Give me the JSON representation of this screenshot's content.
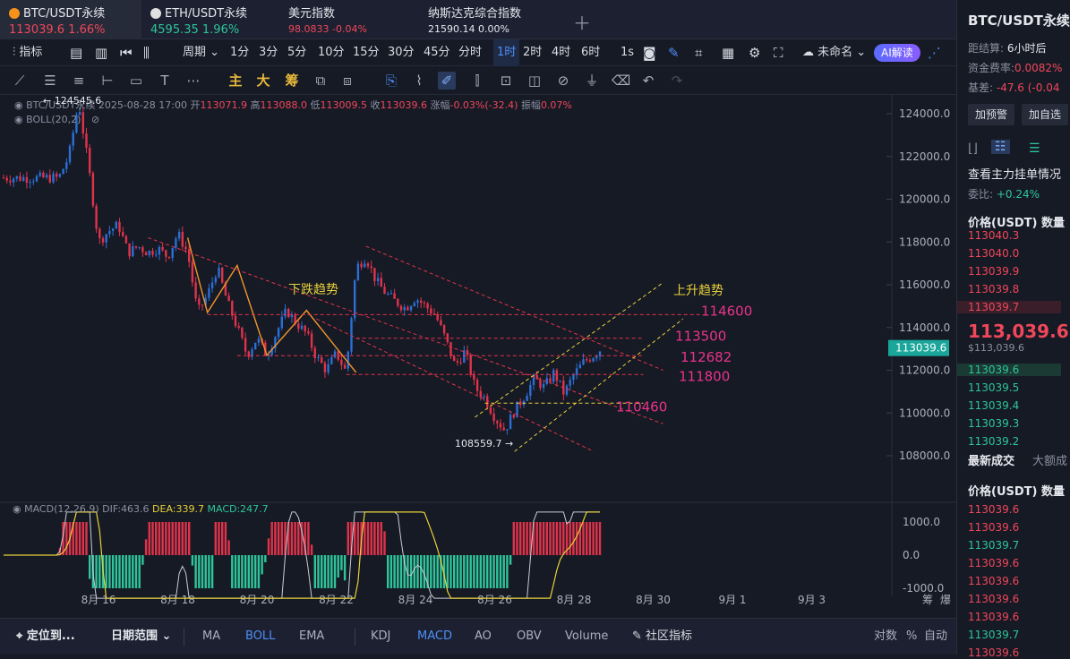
{
  "tabs": [
    {
      "symbol": "BTC/USDT永续",
      "price": "113039.6",
      "change": "1.66%",
      "dir": "up",
      "active": true
    },
    {
      "symbol": "ETH/USDT永续",
      "price": "4595.35",
      "change": "1.96%",
      "dir": "down",
      "active": false
    },
    {
      "symbol": "美元指数",
      "price": "98.0833",
      "change": "-0.04%",
      "dir": "up",
      "active": false
    },
    {
      "symbol": "纳斯达克综合指数",
      "price": "21590.14",
      "change": "0.00%",
      "dir": "flat",
      "active": false
    }
  ],
  "toolbar": {
    "indicators": "指标",
    "period": "周期",
    "intervals": [
      "1分",
      "3分",
      "5分",
      "10分",
      "15分",
      "30分",
      "45分",
      "分时",
      "1时",
      "2时",
      "4时",
      "6时"
    ],
    "selected_interval": "1时",
    "interval_1s": "1s",
    "layout_name": "未命名",
    "ai_button": "AI解读"
  },
  "drawing_tools": {
    "main": "主",
    "big": "大",
    "chip": "筹"
  },
  "legend": {
    "symbol": "BTC/USDT永续",
    "datetime": "2025-08-28 17:00",
    "open_label": "开",
    "open": "113071.9",
    "high_label": "高",
    "high": "113088.0",
    "low_label": "低",
    "low": "113009.5",
    "close_label": "收",
    "close": "113039.6",
    "change_label": "涨幅",
    "change": "-0.03%(-32.4)",
    "amp_label": "振幅",
    "amp": "0.07%",
    "boll": "BOLL(20,2)",
    "high_marker": "124545.6"
  },
  "macd_legend": {
    "name": "MACD(12,26,9)",
    "dif": "DIF:463.6",
    "dea": "DEA:339.7",
    "macd": "MACD:247.7"
  },
  "annotations": {
    "down_trend": "下跌趋势",
    "up_trend": "上升趋势",
    "low_marker": "108559.7",
    "levels": [
      "114600",
      "113500",
      "112682",
      "111800",
      "110460"
    ]
  },
  "price_axis": [
    "124000.0",
    "122000.0",
    "120000.0",
    "118000.0",
    "116000.0",
    "114000.0",
    "112000.0",
    "110000.0",
    "108000.0"
  ],
  "current_price_tag": "113039.6",
  "macd_axis": [
    "1000.0",
    "0.0",
    "-1000.0"
  ],
  "time_axis": [
    "8月 16",
    "8月 18",
    "8月 20",
    "8月 22",
    "8月 24",
    "8月 26",
    "8月 28",
    "8月 30",
    "9月 1",
    "9月 3"
  ],
  "axis_corner": [
    "筹",
    "爆"
  ],
  "bottom_bar": {
    "goto": "定位到...",
    "range": "日期范围",
    "items": [
      "MA",
      "BOLL",
      "EMA",
      "KDJ",
      "MACD",
      "AO",
      "OBV",
      "Volume"
    ],
    "active": [
      "BOLL",
      "MACD"
    ],
    "community": "社区指标",
    "right": [
      "对数",
      "%",
      "自动"
    ]
  },
  "side_panel": {
    "title": "BTC/USDT永续",
    "settle_label": "距结算:",
    "settle_value": "6小时后",
    "funding_label": "资金费率:",
    "funding_value": "0.0082%",
    "basis_label": "基差:",
    "basis_value": "-47.6 (-0.04",
    "alert_btn": "加预警",
    "watch_btn": "加自选",
    "orderbook_link": "查看主力挂单情况",
    "commission_label": "委比:",
    "commission_value": "+0.24%",
    "header": "价格(USDT) 数量",
    "asks": [
      "113040.3",
      "113040.0",
      "113039.9",
      "113039.8",
      "113039.7"
    ],
    "last_price": "113,039.6",
    "last_price_usd": "$113,039.6",
    "bids": [
      "113039.6",
      "113039.5",
      "113039.4",
      "113039.3",
      "113039.2"
    ],
    "trades_tab": "最新成交",
    "big_tab": "大额成",
    "trades_header": "价格(USDT) 数量",
    "trades": [
      {
        "p": "113039.6",
        "c": "r"
      },
      {
        "p": "113039.6",
        "c": "r"
      },
      {
        "p": "113039.7",
        "c": "g"
      },
      {
        "p": "113039.6",
        "c": "r"
      },
      {
        "p": "113039.6",
        "c": "r"
      },
      {
        "p": "113039.6",
        "c": "r"
      },
      {
        "p": "113039.6",
        "c": "r"
      },
      {
        "p": "113039.7",
        "c": "g"
      },
      {
        "p": "113039.6",
        "c": "r"
      }
    ]
  },
  "chart_data": {
    "type": "candlestick",
    "x_range": [
      "2025-08-15",
      "2025-09-04"
    ],
    "y_range": [
      107000,
      125000
    ],
    "path": [
      [
        "08-15 00",
        121000
      ],
      [
        "08-15 06",
        122000
      ],
      [
        "08-15 12",
        124545.6
      ],
      [
        "08-15 18",
        121500
      ],
      [
        "08-16 00",
        118000
      ],
      [
        "08-16 06",
        118500
      ],
      [
        "08-16 12",
        118800
      ],
      [
        "08-16 18",
        117500
      ],
      [
        "08-17 00",
        117800
      ],
      [
        "08-17 06",
        117500
      ],
      [
        "08-17 12",
        117700
      ],
      [
        "08-17 18",
        117300
      ],
      [
        "08-18 00",
        118400
      ],
      [
        "08-18 06",
        117500
      ],
      [
        "08-18 12",
        114700
      ],
      [
        "08-18 18",
        115500
      ],
      [
        "08-19 00",
        116800
      ],
      [
        "08-19 06",
        115200
      ],
      [
        "08-19 12",
        114000
      ],
      [
        "08-19 18",
        112700
      ],
      [
        "08-20 00",
        113500
      ],
      [
        "08-20 06",
        112700
      ],
      [
        "08-20 12",
        113800
      ],
      [
        "08-20 18",
        114800
      ],
      [
        "08-21 00",
        114200
      ],
      [
        "08-21 06",
        113700
      ],
      [
        "08-21 12",
        112600
      ],
      [
        "08-21 18",
        112000
      ],
      [
        "08-22 00",
        112800
      ],
      [
        "08-22 06",
        111900
      ],
      [
        "08-22 12",
        116800
      ],
      [
        "08-22 18",
        117300
      ],
      [
        "08-23 00",
        116200
      ],
      [
        "08-23 06",
        115600
      ],
      [
        "08-23 12",
        115200
      ],
      [
        "08-23 18",
        114900
      ],
      [
        "08-24 00",
        115400
      ],
      [
        "08-24 06",
        115000
      ],
      [
        "08-24 12",
        114600
      ],
      [
        "08-24 18",
        113500
      ],
      [
        "08-25 00",
        112200
      ],
      [
        "08-25 06",
        112900
      ],
      [
        "08-25 12",
        111200
      ],
      [
        "08-25 18",
        110700
      ],
      [
        "08-26 00",
        109800
      ],
      [
        "08-26 06",
        109200
      ],
      [
        "08-26 12",
        110100
      ],
      [
        "08-26 18",
        110800
      ],
      [
        "08-27 00",
        111600
      ],
      [
        "08-27 06",
        111200
      ],
      [
        "08-27 12",
        111900
      ],
      [
        "08-27 18",
        110900
      ],
      [
        "08-28 00",
        111800
      ],
      [
        "08-28 06",
        112400
      ],
      [
        "08-28 12",
        112700
      ],
      [
        "08-28 17",
        113039.6
      ]
    ],
    "horizontal_levels": [
      114600,
      113500,
      112682,
      111800,
      110460
    ],
    "trend_lines": {
      "down_trend": [
        [
          "08-18",
          118000
        ],
        [
          "08-30",
          110400
        ]
      ],
      "up_trend_lower": [
        [
          "08-26",
          108400
        ],
        [
          "08-30",
          114600
        ]
      ]
    },
    "macd": {
      "dif": 463.6,
      "dea": 339.7,
      "hist": 247.7,
      "range": [
        -1000,
        1000
      ]
    }
  }
}
